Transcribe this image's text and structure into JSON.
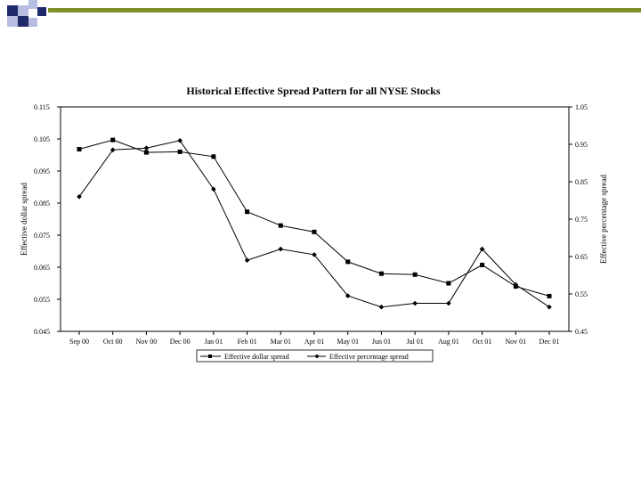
{
  "slide": {
    "decoration_colors": {
      "navy": "#1F2A6B",
      "lavender": "#B7BDE0",
      "olive": "#7F8F2A"
    }
  },
  "chart_data": {
    "type": "line",
    "title": "Historical Effective Spread Pattern for all NYSE Stocks",
    "categories": [
      "Sep 00",
      "Oct 00",
      "Nov 00",
      "Dec 00",
      "Jan 01",
      "Feb 01",
      "Mar 01",
      "Apr 01",
      "May 01",
      "Jun 01",
      "Jul 01",
      "Aug 01",
      "Oct 01",
      "Nov 01",
      "Dec 01"
    ],
    "y_left": {
      "label": "Effective dollar spread",
      "range": [
        0.045,
        0.115
      ],
      "ticks": [
        "0.115",
        "0.105",
        "0.095",
        "0.085",
        "0.075",
        "0.065",
        "0.055",
        "0.045"
      ]
    },
    "y_right": {
      "label": "Effective percentage spread",
      "range": [
        0.45,
        1.05
      ],
      "ticks": [
        "1.05",
        "0.95",
        "0.85",
        "0.75",
        "0.65",
        "0.55",
        "0.45"
      ]
    },
    "series": [
      {
        "name": "Effective dollar spread",
        "axis": "left",
        "marker": "square",
        "values": [
          0.1018,
          0.1047,
          0.1008,
          0.101,
          0.0995,
          0.0823,
          0.078,
          0.076,
          0.0667,
          0.063,
          0.0627,
          0.06,
          0.0657,
          0.059,
          0.056
        ]
      },
      {
        "name": "Effective percentage spread",
        "axis": "right",
        "marker": "diamond",
        "values": [
          0.81,
          0.935,
          0.94,
          0.96,
          0.83,
          0.64,
          0.67,
          0.655,
          0.545,
          0.515,
          0.525,
          0.525,
          0.67,
          0.575,
          0.515
        ]
      }
    ],
    "legend": {
      "placement": "bottom"
    },
    "grid": false
  }
}
